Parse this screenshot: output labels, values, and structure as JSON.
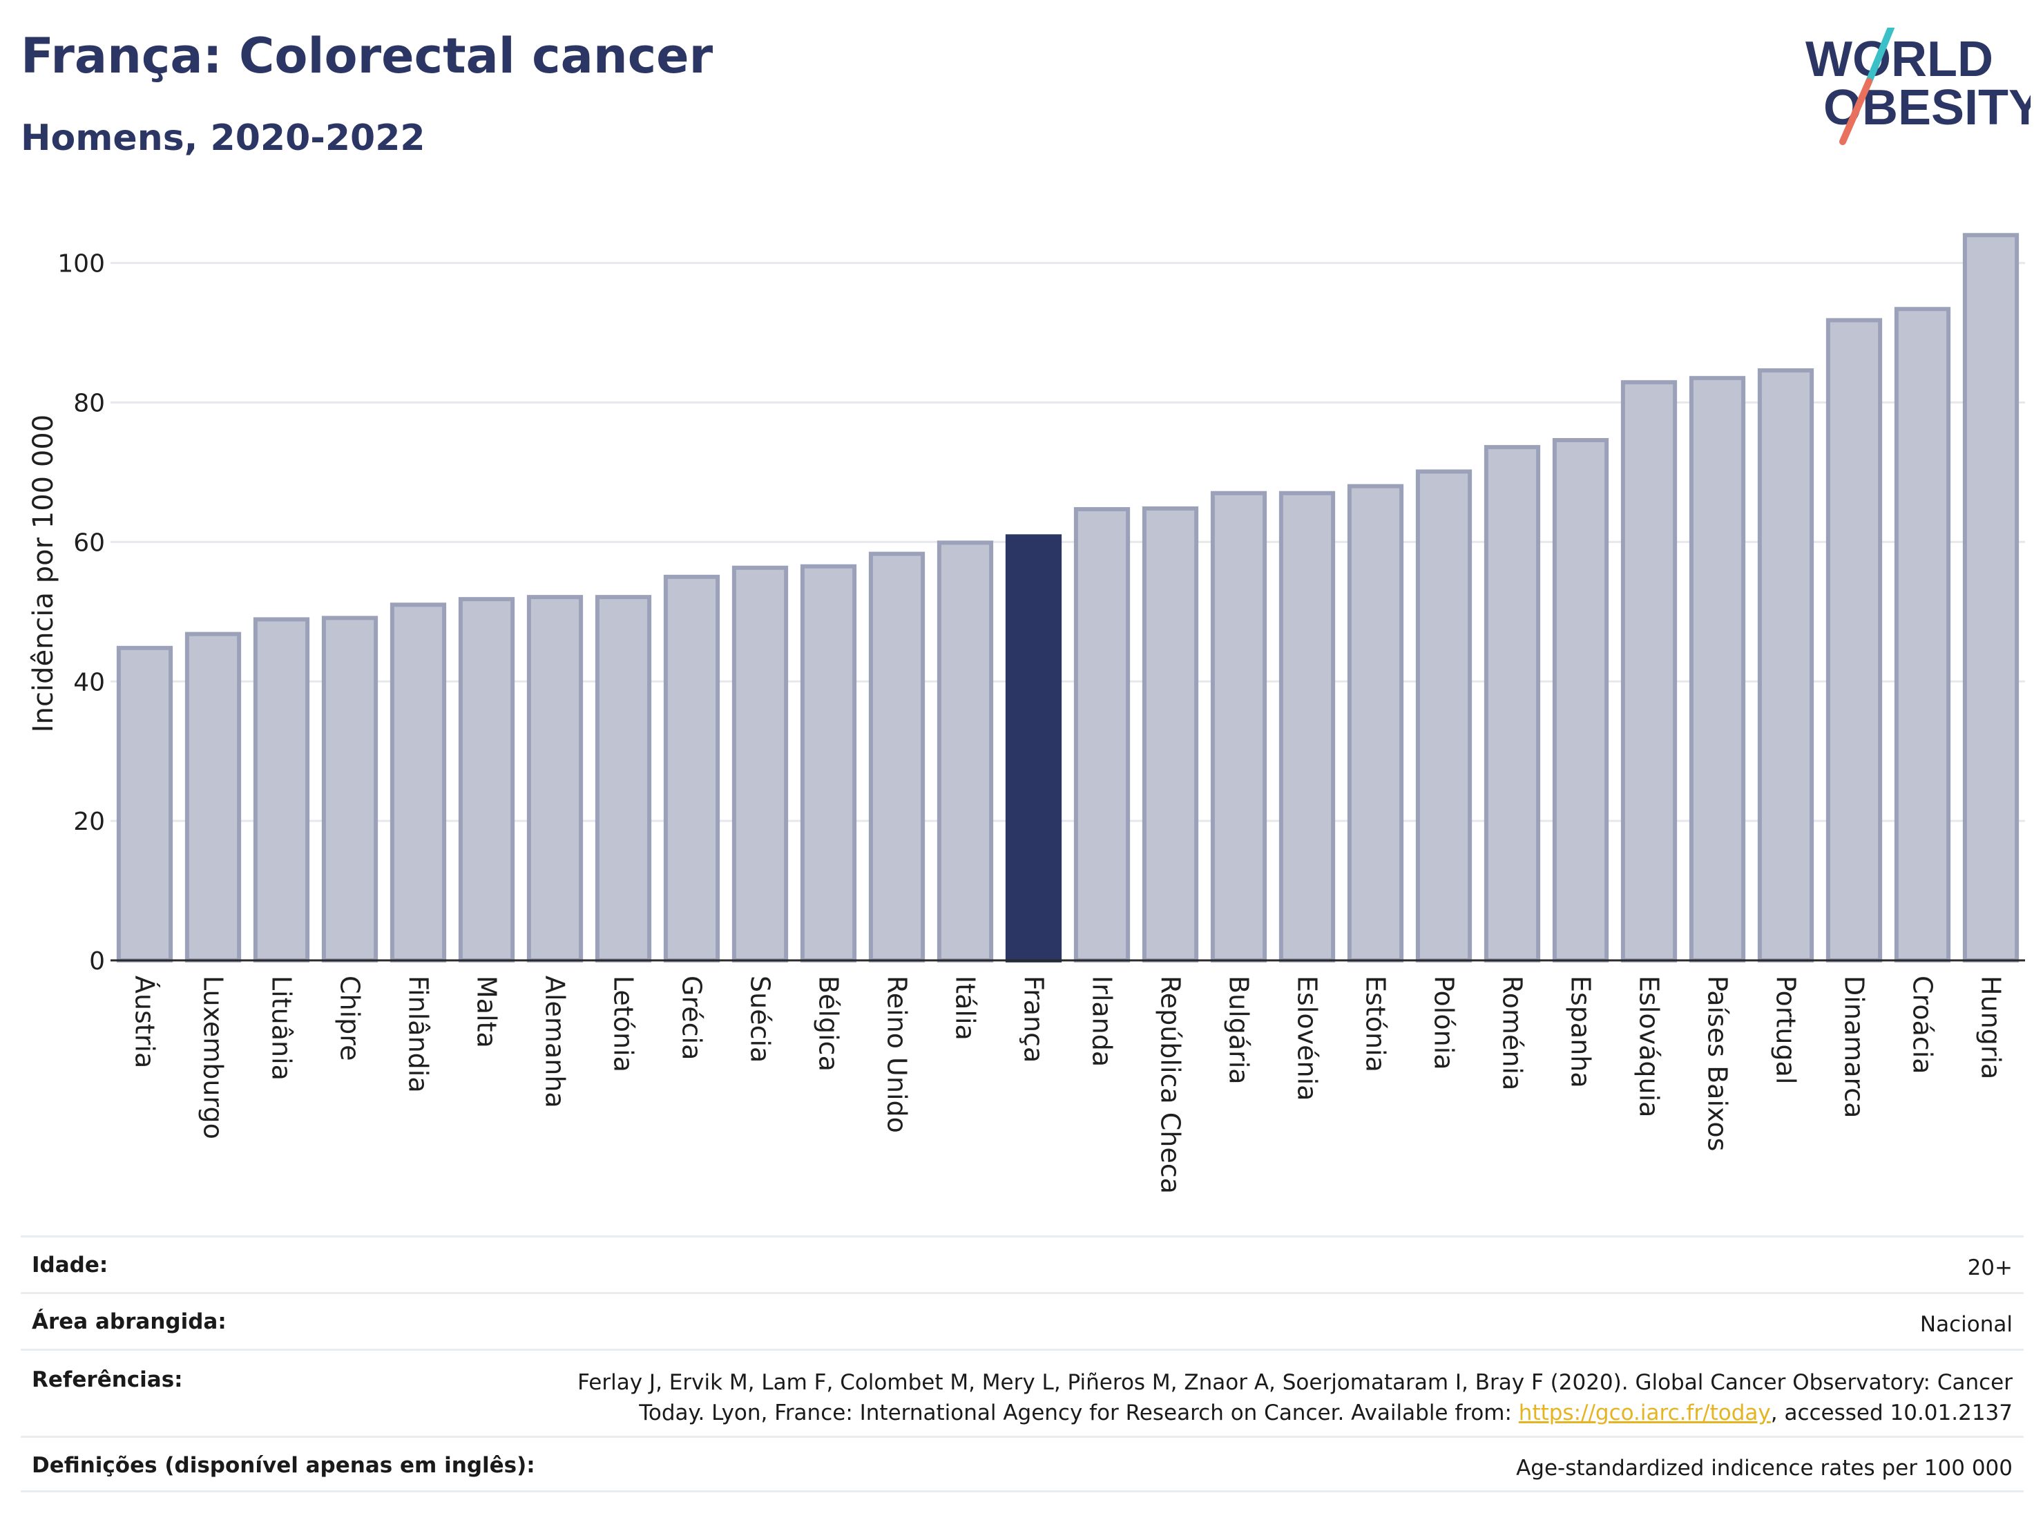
{
  "header": {
    "title": "França: Colorectal cancer",
    "subtitle": "Homens, 2020-2022"
  },
  "logo": {
    "line1": "WORLD",
    "line2": "OBESITY"
  },
  "colors": {
    "bar": "#bfc3d2",
    "bar_stroke": "#9ba1b9",
    "highlight": "#2b3664",
    "grid": "#e6e8ee",
    "logo_text": "#2b3664",
    "logo_slash_teal": "#3cc0c7",
    "logo_slash_red": "#e8705c"
  },
  "chart_data": {
    "type": "bar",
    "title": "França: Colorectal cancer",
    "subtitle": "Homens, 2020-2022",
    "xlabel": "",
    "ylabel": "Incidência por 100 000",
    "ylim": [
      0,
      107
    ],
    "yticks": [
      0,
      20,
      40,
      60,
      80,
      100
    ],
    "grid": true,
    "highlight": "França",
    "categories": [
      "Áustria",
      "Luxemburgo",
      "Lituânia",
      "Chipre",
      "Finlândia",
      "Malta",
      "Alemanha",
      "Letónia",
      "Grécia",
      "Suécia",
      "Bélgica",
      "Reino Unido",
      "Itália",
      "França",
      "Irlanda",
      "República Checa",
      "Bulgária",
      "Eslovénia",
      "Estónia",
      "Polónia",
      "Roménia",
      "Espanha",
      "Eslováquia",
      "Países Baixos",
      "Portugal",
      "Dinamarca",
      "Croácia",
      "Hungria"
    ],
    "values": [
      44.8,
      46.8,
      48.9,
      49.1,
      51.0,
      51.8,
      52.1,
      52.1,
      55.0,
      56.3,
      56.5,
      58.3,
      59.9,
      60.8,
      64.7,
      64.8,
      67.0,
      67.0,
      68.0,
      70.1,
      73.6,
      74.6,
      82.9,
      83.5,
      84.6,
      91.8,
      93.4,
      104.0
    ]
  },
  "info": {
    "age_label": "Idade:",
    "age_value": "20+",
    "area_label": "Área abrangida:",
    "area_value": "Nacional",
    "ref_label": "Referências:",
    "ref_line1": "Ferlay J, Ervik M, Lam F, Colombet M, Mery L, Piñeros M, Znaor A, Soerjomataram I, Bray F (2020). Global Cancer Observatory: Cancer",
    "ref_line2_pre": "Today. Lyon, France: International Agency for Research on Cancer. Available from: ",
    "ref_link": "https://gco.iarc.fr/today",
    "ref_line2_post": ", accessed 10.01.2137",
    "def_label": "Definições (disponível apenas em inglês):",
    "def_value": "Age-standardized indicence rates per 100 000"
  }
}
